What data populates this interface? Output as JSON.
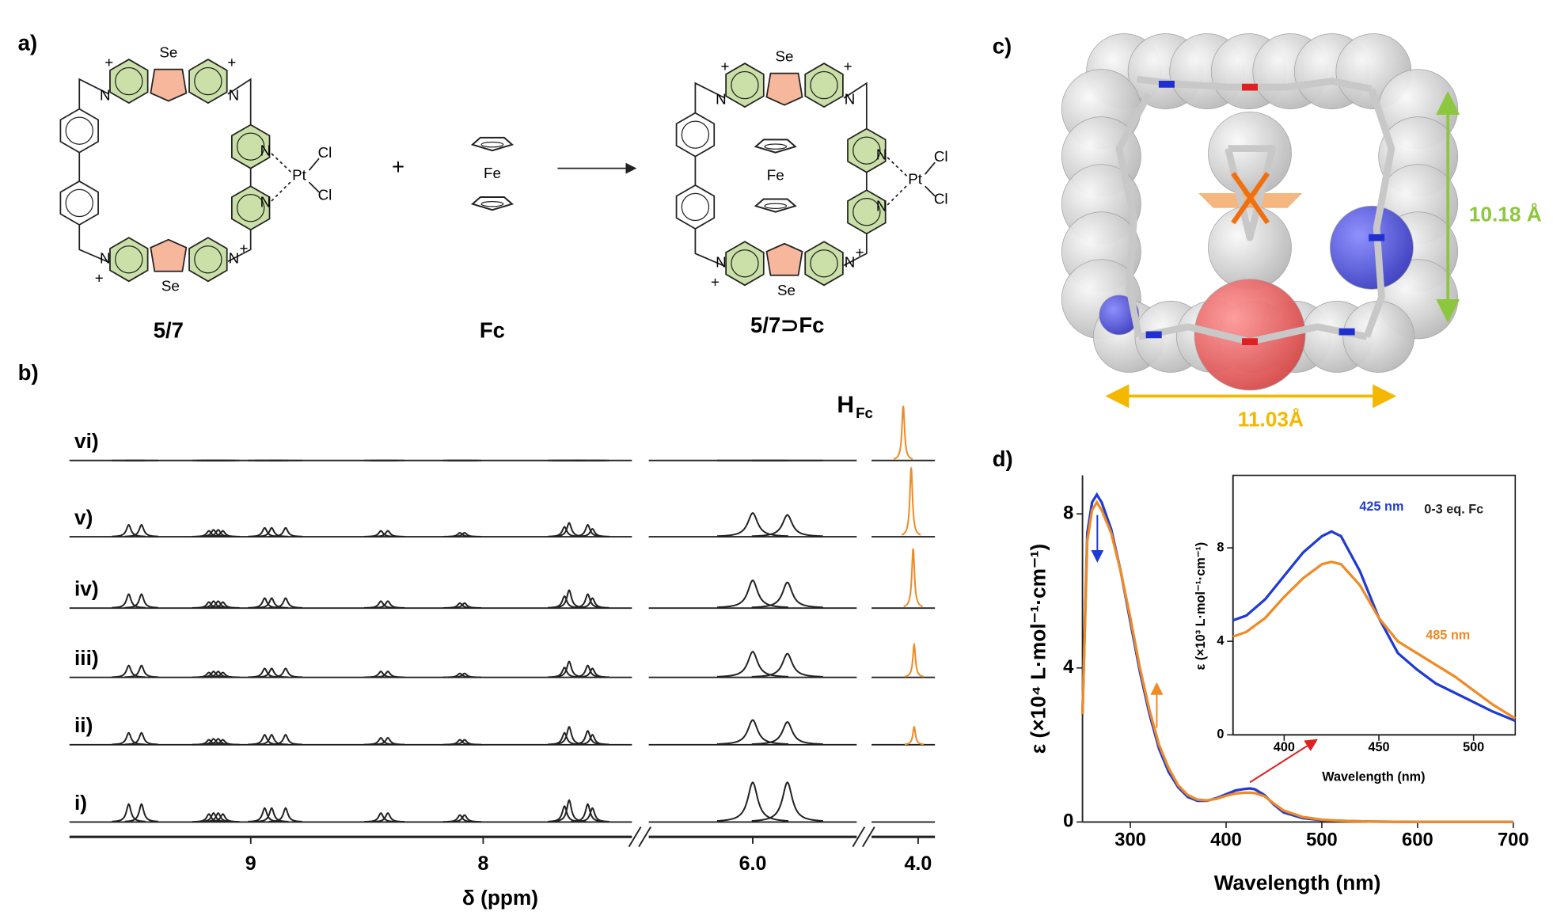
{
  "panels": {
    "a": "a)",
    "b": "b)",
    "c": "c)",
    "d": "d)"
  },
  "scheme": {
    "host": {
      "label": "5/7",
      "atoms": [
        "Se",
        "+",
        "N",
        "+",
        "N",
        "N",
        "N",
        "Pt",
        "Cl",
        "Cl",
        "N",
        "+",
        "N",
        "+",
        "Se"
      ]
    },
    "plus": "+",
    "guest": {
      "label": "Fc",
      "atom": "Fe"
    },
    "complex": {
      "label": "5/7⊃Fc",
      "atoms": [
        "Se",
        "+",
        "N",
        "+",
        "N",
        "N",
        "N",
        "Pt",
        "Cl",
        "Cl",
        "N",
        "+",
        "N",
        "+",
        "Se"
      ],
      "guest_atom": "Fe"
    }
  },
  "nmr": {
    "xlabel": "δ (ppm)",
    "peak_label": "H",
    "peak_label_sub": "Fc",
    "segments": [
      {
        "xlim": [
          9.78,
          7.36
        ],
        "xticks": [
          9,
          8
        ]
      },
      {
        "xlim": [
          6.525,
          5.475
        ],
        "xticks": [
          {
            "value": 6,
            "label": "6.0"
          }
        ]
      },
      {
        "xlim": [
          4.235,
          3.915
        ],
        "xticks": [
          {
            "value": 4,
            "label": "4.0"
          }
        ]
      }
    ],
    "peak_ppm": [
      9.525,
      9.47,
      9.18,
      9.16,
      9.14,
      9.12,
      8.94,
      8.91,
      8.85,
      8.44,
      8.41,
      8.1,
      8.08,
      7.65,
      7.63,
      7.55,
      7.53,
      6.0,
      5.825
    ],
    "spectra": [
      {
        "label": "vi)",
        "intensities": [
          0,
          0,
          0,
          0,
          0,
          0,
          0,
          0,
          0,
          0,
          0,
          0,
          0,
          0,
          0,
          0,
          0,
          0,
          0
        ],
        "fc_ppm": 4.075,
        "fc_intensity": 55
      },
      {
        "label": "v)",
        "intensities": [
          12,
          12,
          6,
          7,
          7,
          6,
          9,
          9,
          9,
          6,
          6,
          4,
          4,
          10,
          14,
          12,
          8,
          24,
          22
        ],
        "fc_ppm": 4.035,
        "fc_intensity": 70
      },
      {
        "label": "iv)",
        "intensities": [
          14,
          14,
          6,
          7,
          7,
          6,
          10,
          10,
          10,
          7,
          7,
          5,
          5,
          12,
          18,
          14,
          10,
          28,
          26
        ],
        "fc_ppm": 4.025,
        "fc_intensity": 60
      },
      {
        "label": "iii)",
        "intensities": [
          12,
          12,
          5,
          6,
          6,
          5,
          9,
          9,
          9,
          6,
          6,
          4,
          4,
          10,
          16,
          12,
          9,
          26,
          24
        ],
        "fc_ppm": 4.02,
        "fc_intensity": 33
      },
      {
        "label": "ii)",
        "intensities": [
          12,
          12,
          5,
          6,
          6,
          5,
          10,
          10,
          10,
          7,
          7,
          5,
          5,
          12,
          18,
          14,
          10,
          25,
          23
        ],
        "fc_ppm": 4.02,
        "fc_intensity": 18
      },
      {
        "label": "i)",
        "intensities": [
          18,
          18,
          8,
          9,
          9,
          8,
          14,
          14,
          14,
          9,
          9,
          7,
          7,
          16,
          22,
          18,
          14,
          40,
          40
        ],
        "fc_ppm": null,
        "fc_intensity": null
      }
    ]
  },
  "model": {
    "height_label": "10.18 Å",
    "width_label": "11.03Å"
  },
  "chart_data": [
    {
      "type": "line",
      "xlabel": "Wavelength (nm)",
      "ylabel": "ε (×10⁴ L·mol⁻¹·cm⁻¹)",
      "xlim": [
        250,
        700
      ],
      "ylim": [
        0,
        9
      ],
      "xticks": [
        300,
        400,
        500,
        600,
        700
      ],
      "yticks": [
        0,
        4,
        8
      ],
      "x": [
        250,
        255,
        260,
        265,
        270,
        280,
        290,
        300,
        310,
        320,
        330,
        340,
        350,
        360,
        370,
        380,
        390,
        400,
        410,
        420,
        425,
        430,
        440,
        450,
        460,
        480,
        500,
        520,
        550,
        600,
        700
      ],
      "series": [
        {
          "color": "#1f3bd6",
          "values": [
            2.8,
            7.5,
            8.3,
            8.5,
            8.3,
            7.6,
            6.5,
            5.2,
            3.9,
            2.8,
            1.9,
            1.3,
            0.9,
            0.65,
            0.55,
            0.55,
            0.62,
            0.72,
            0.82,
            0.86,
            0.87,
            0.85,
            0.7,
            0.45,
            0.25,
            0.1,
            0.05,
            0.03,
            0.01,
            0,
            0
          ]
        },
        {
          "color": "#f08a24",
          "values": [
            2.8,
            7.3,
            8.1,
            8.3,
            8.1,
            7.5,
            6.5,
            5.3,
            4.0,
            2.9,
            2.0,
            1.4,
            0.95,
            0.7,
            0.58,
            0.56,
            0.6,
            0.68,
            0.74,
            0.76,
            0.76,
            0.75,
            0.67,
            0.48,
            0.3,
            0.13,
            0.06,
            0.03,
            0.01,
            0,
            0
          ]
        }
      ]
    },
    {
      "type": "line",
      "xlabel": "Wavelength (nm)",
      "ylabel": "ε (×10³ L·mol⁻¹·cm⁻¹)",
      "xlim": [
        373,
        522
      ],
      "ylim": [
        0,
        11.1
      ],
      "xticks": [
        400,
        450,
        500
      ],
      "yticks": [
        0,
        4,
        8
      ],
      "annotations": [
        "425 nm",
        "0-3 eq. Fc",
        "485 nm"
      ],
      "x": [
        373,
        380,
        390,
        400,
        410,
        420,
        425,
        430,
        440,
        450,
        460,
        470,
        480,
        490,
        500,
        510,
        522
      ],
      "series": [
        {
          "color": "#1f3bd6",
          "values": [
            4.9,
            5.1,
            5.8,
            6.8,
            7.8,
            8.5,
            8.7,
            8.5,
            7.0,
            5.0,
            3.5,
            2.8,
            2.2,
            1.8,
            1.4,
            1.0,
            0.6
          ]
        },
        {
          "color": "#f08a24",
          "values": [
            4.2,
            4.4,
            5.0,
            5.9,
            6.7,
            7.3,
            7.4,
            7.3,
            6.4,
            5.0,
            4.0,
            3.5,
            3.0,
            2.5,
            1.9,
            1.3,
            0.7
          ]
        }
      ]
    }
  ]
}
